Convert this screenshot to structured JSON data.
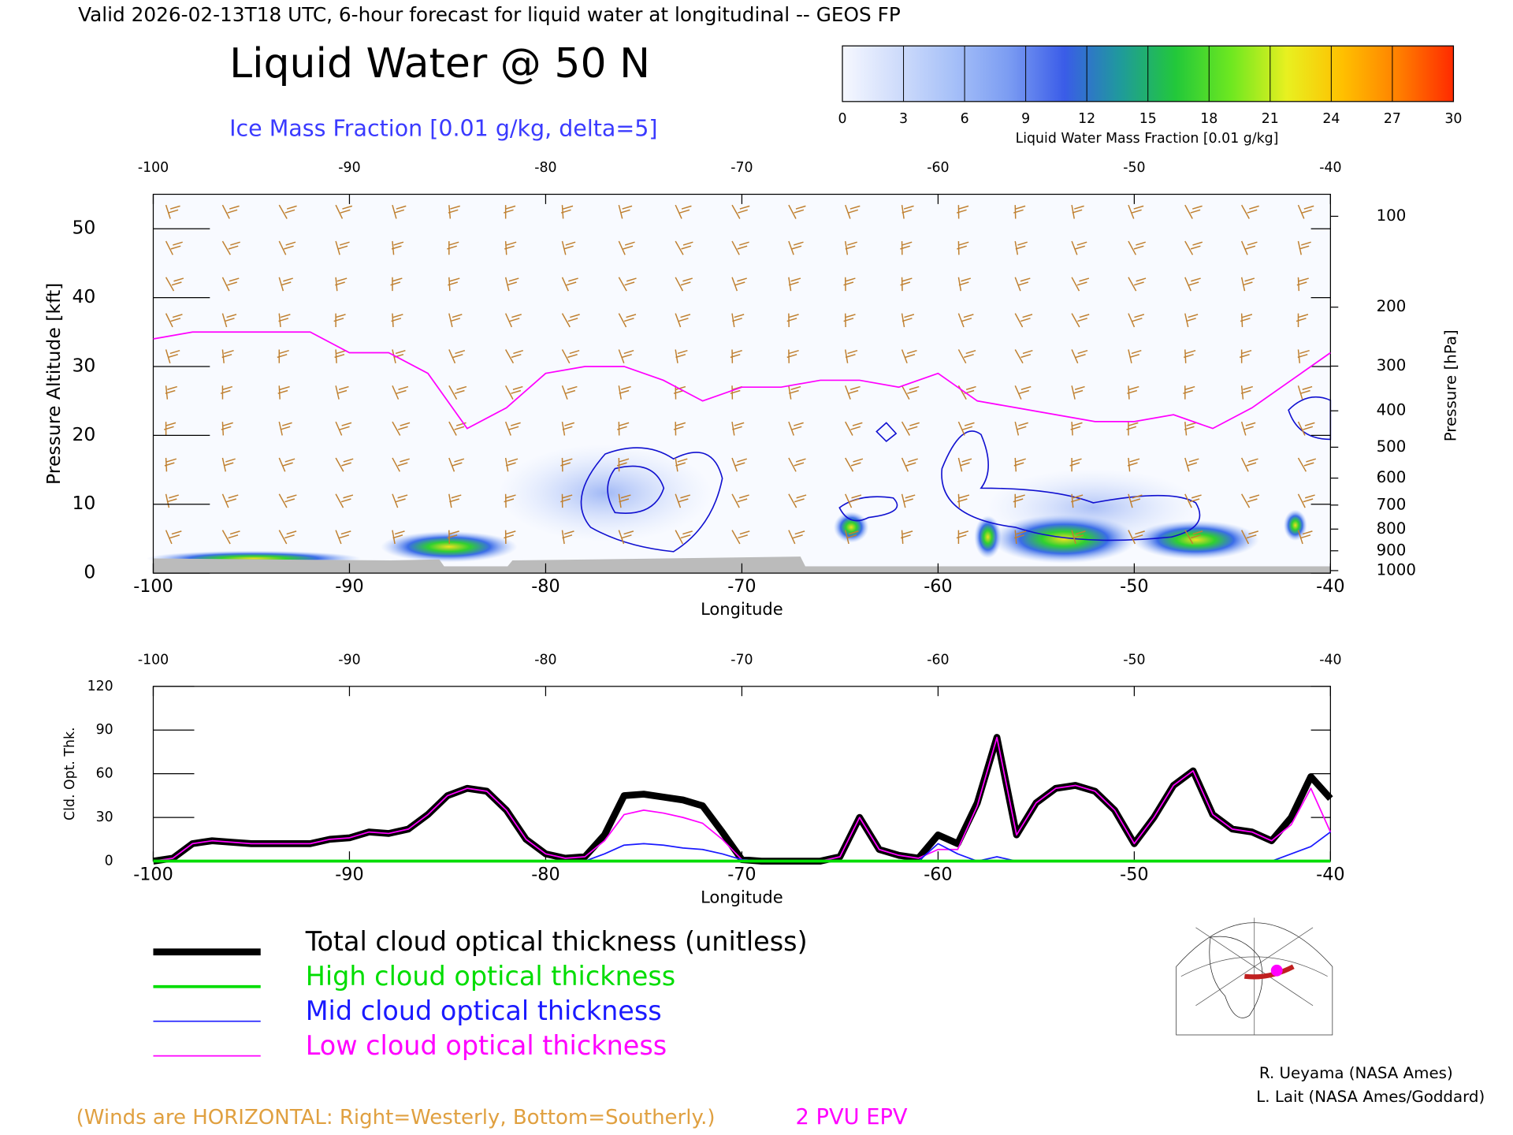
{
  "header": "Valid 2026-02-13T18 UTC, 6-hour forecast for liquid water at longitudinal -- GEOS FP",
  "chart_data": [
    {
      "type": "cross-section",
      "title": "Liquid Water @ 50 N",
      "subtitle": "Ice Mass Fraction [0.01 g/kg, delta=5]",
      "xlabel": "Longitude",
      "ylabel": "Pressure Altitude [kft]",
      "y2label": "Pressure [hPa]",
      "xlim": [
        -100,
        -40
      ],
      "xticks": [
        -100,
        -90,
        -80,
        -70,
        -60,
        -50,
        -40
      ],
      "ylim": [
        0,
        55
      ],
      "yticks": [
        0,
        10,
        20,
        30,
        40,
        50
      ],
      "y2ticks": [
        100,
        200,
        300,
        400,
        500,
        600,
        700,
        800,
        900,
        1000
      ],
      "colorbar": {
        "label": "Liquid Water Mass Fraction [0.01 g/kg]",
        "ticks": [
          0,
          3,
          6,
          9,
          12,
          15,
          18,
          21,
          24,
          27,
          30
        ],
        "colors": [
          "#f6f8ff",
          "#cfdcfb",
          "#a6c0f8",
          "#7b9cf2",
          "#3a5ce8",
          "#1f9a9c",
          "#22c83a",
          "#6ee820",
          "#e8f020",
          "#ffc000",
          "#ff8000",
          "#ff2a00"
        ]
      },
      "series": [
        {
          "name": "2 PVU EPV",
          "color": "#ff00ff",
          "x": [
            -100,
            -98,
            -96,
            -94,
            -92,
            -90,
            -88,
            -86,
            -84,
            -82,
            -80,
            -78,
            -76,
            -74,
            -72,
            -70,
            -68,
            -66,
            -64,
            -62,
            -60,
            -58,
            -56,
            -54,
            -52,
            -50,
            -48,
            -46,
            -44,
            -42,
            -40
          ],
          "values": [
            34,
            35,
            35,
            35,
            35,
            32,
            32,
            29,
            21,
            24,
            29,
            30,
            30,
            28,
            25,
            27,
            27,
            28,
            28,
            27,
            29,
            25,
            24,
            23,
            22,
            22,
            23,
            21,
            24,
            28,
            32
          ]
        }
      ],
      "note": "(Winds are HORIZONTAL: Right=Westerly, Bottom=Southerly.)"
    },
    {
      "type": "line",
      "xlabel": "Longitude",
      "ylabel": "Cld. Opt. Thk.",
      "xlim": [
        -100,
        -40
      ],
      "xticks": [
        -100,
        -90,
        -80,
        -70,
        -60,
        -50,
        -40
      ],
      "ylim": [
        0,
        120
      ],
      "yticks": [
        0,
        30,
        60,
        90,
        120
      ],
      "x": [
        -100,
        -99,
        -98,
        -97,
        -96,
        -95,
        -94,
        -93,
        -92,
        -91,
        -90,
        -89,
        -88,
        -87,
        -86,
        -85,
        -84,
        -83,
        -82,
        -81,
        -80,
        -79,
        -78,
        -77,
        -76,
        -75,
        -74,
        -73,
        -72,
        -71,
        -70,
        -69,
        -68,
        -67,
        -66,
        -65,
        -64,
        -63,
        -62,
        -61,
        -60,
        -59,
        -58,
        -57,
        -56,
        -55,
        -54,
        -53,
        -52,
        -51,
        -50,
        -49,
        -48,
        -47,
        -46,
        -45,
        -44,
        -43,
        -42,
        -41,
        -40
      ],
      "series": [
        {
          "name": "Total cloud optical thickness (unitless)",
          "color": "#000000",
          "width": 7,
          "values": [
            0,
            2,
            12,
            14,
            13,
            12,
            12,
            12,
            12,
            15,
            16,
            20,
            19,
            22,
            32,
            45,
            50,
            48,
            35,
            15,
            5,
            2,
            3,
            18,
            45,
            46,
            44,
            42,
            38,
            20,
            1,
            0,
            0,
            0,
            0,
            3,
            30,
            8,
            4,
            2,
            18,
            12,
            40,
            85,
            18,
            40,
            50,
            52,
            48,
            35,
            12,
            30,
            52,
            62,
            32,
            22,
            20,
            14,
            30,
            58,
            43
          ]
        },
        {
          "name": "High cloud optical thickness",
          "color": "#00dd00",
          "width": 3,
          "values": [
            0,
            0,
            0,
            0,
            0,
            0,
            0,
            0,
            0,
            0,
            0,
            0,
            0,
            0,
            0,
            0,
            0,
            0,
            0,
            0,
            0,
            0,
            0,
            0,
            0,
            0,
            0,
            0,
            0,
            0,
            0,
            0,
            0,
            0,
            0,
            0,
            0,
            0,
            0,
            0,
            0,
            0,
            0,
            0,
            0,
            0,
            0,
            0,
            0,
            0,
            0,
            0,
            0,
            0,
            0,
            0,
            0,
            0,
            0,
            0,
            0
          ]
        },
        {
          "name": "Mid cloud optical thickness",
          "color": "#1a1aff",
          "width": 1.4,
          "values": [
            0,
            0,
            0,
            0,
            0,
            0,
            0,
            0,
            0,
            0,
            0,
            0,
            0,
            0,
            0,
            0,
            0,
            0,
            0,
            0,
            0,
            0,
            0,
            5,
            11,
            12,
            11,
            9,
            8,
            5,
            1,
            0,
            0,
            0,
            0,
            0,
            0,
            0,
            0,
            0,
            12,
            5,
            0,
            3,
            0,
            0,
            0,
            0,
            0,
            0,
            0,
            0,
            0,
            0,
            0,
            0,
            0,
            0,
            5,
            10,
            20
          ]
        },
        {
          "name": "Low cloud optical thickness",
          "color": "#ff00ff",
          "width": 1.4,
          "values": [
            0,
            2,
            12,
            14,
            13,
            12,
            12,
            12,
            12,
            15,
            16,
            20,
            19,
            22,
            32,
            45,
            50,
            48,
            35,
            15,
            5,
            2,
            3,
            14,
            32,
            35,
            33,
            30,
            26,
            15,
            1,
            0,
            0,
            0,
            0,
            3,
            30,
            8,
            4,
            2,
            8,
            8,
            38,
            85,
            18,
            40,
            50,
            52,
            48,
            35,
            12,
            30,
            52,
            62,
            32,
            22,
            20,
            14,
            25,
            50,
            20
          ]
        }
      ]
    }
  ],
  "credits": [
    "R. Ueyama (NASA Ames)",
    "L. Lait (NASA Ames/Goddard)"
  ]
}
